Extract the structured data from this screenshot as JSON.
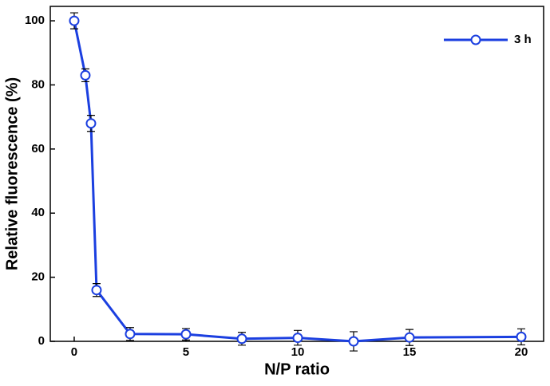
{
  "chart_data": {
    "type": "line",
    "xlabel": "N/P ratio",
    "ylabel": "Relative fluorescence (%)",
    "x": [
      0,
      0.5,
      0.75,
      1,
      2.5,
      5,
      7.5,
      10,
      12.5,
      15,
      20
    ],
    "series": [
      {
        "name": "3 h",
        "color": "#1b3fe0",
        "values": [
          100,
          83,
          68,
          16,
          2.3,
          2.2,
          0.8,
          1.1,
          0,
          1.2,
          1.4
        ],
        "errors": [
          2.5,
          2,
          2.5,
          2,
          2,
          1.8,
          2,
          2.3,
          3,
          2.5,
          2.5
        ]
      }
    ],
    "xlim": [
      -1.07,
      21
    ],
    "ylim": [
      0,
      104.5
    ],
    "xticks": [
      0,
      5,
      10,
      15,
      20
    ],
    "yticks": [
      0,
      20,
      40,
      60,
      80,
      100
    ],
    "legend": "upper right"
  }
}
